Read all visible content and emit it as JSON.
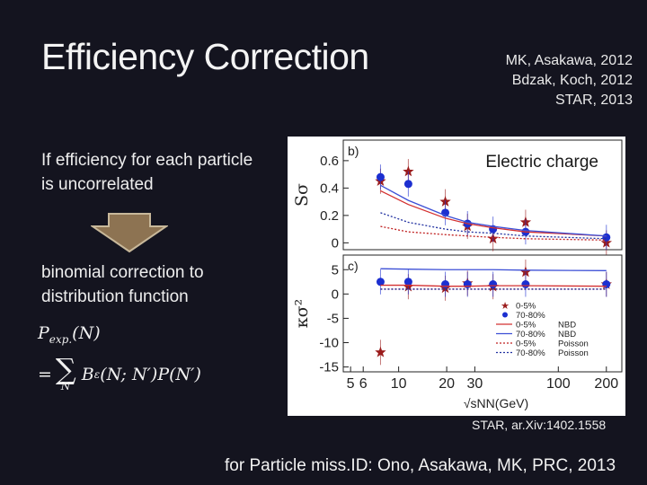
{
  "slide": {
    "title": "Efficiency Correction",
    "refs": [
      "MK, Asakawa, 2012",
      "Bdzak, Koch, 2012",
      "STAR, 2013"
    ],
    "text_top": "If efficiency for each particle is uncorrelated",
    "text_bottom": "binomial correction to distribution function",
    "formula_lhs": "P",
    "formula_lhs_sub": "exp.",
    "formula_lhs_arg": "(N)",
    "formula_eq": "=",
    "formula_sum_sub": "N′",
    "formula_rhs": "B",
    "formula_rhs_sub": "ε",
    "formula_rhs_args": "(N; N′)P(N′)",
    "figure_caption": "STAR, ar.Xiv:1402.1558",
    "footer": "for Particle miss.ID: Ono, Asakawa, MK, PRC, 2013",
    "arrow_color": "#8d7352"
  },
  "chart_data": {
    "type": "scatter",
    "title": "Electric charge",
    "xlabel": "√sNN(GeV)",
    "x_ticks": [
      "5",
      "6",
      "10",
      "20",
      "30",
      "100",
      "200"
    ],
    "x_tick_values": [
      5,
      6,
      10,
      20,
      30,
      100,
      200
    ],
    "xlim": [
      4.5,
      250
    ],
    "xscale": "log",
    "panels": [
      {
        "label": "b)",
        "ylabel": "Sσ",
        "ylim": [
          -0.05,
          0.75
        ],
        "y_ticks": [
          "0.6",
          "0.4",
          "0.2",
          "0"
        ],
        "y_tick_values": [
          0.6,
          0.4,
          0.2,
          0
        ],
        "series": [
          {
            "name": "0-5%",
            "marker": "star",
            "color": "#9b1c1c",
            "x": [
              7.7,
              11.5,
              19.6,
              27,
              39,
              62.4,
              200
            ],
            "y": [
              0.45,
              0.52,
              0.3,
              0.12,
              0.03,
              0.15,
              0.0
            ]
          },
          {
            "name": "70-80%",
            "marker": "circle",
            "color": "#1c2fd0",
            "x": [
              7.7,
              11.5,
              19.6,
              27,
              39,
              62.4,
              200
            ],
            "y": [
              0.48,
              0.43,
              0.22,
              0.14,
              0.1,
              0.08,
              0.04
            ]
          },
          {
            "name": "0-5% NBD",
            "line": "solid",
            "color": "#d43030",
            "x": [
              7.7,
              11.5,
              19.6,
              27,
              39,
              62.4,
              200
            ],
            "y": [
              0.38,
              0.28,
              0.18,
              0.14,
              0.11,
              0.08,
              0.05
            ]
          },
          {
            "name": "70-80% NBD",
            "line": "solid",
            "color": "#3c4fd6",
            "x": [
              7.7,
              11.5,
              19.6,
              27,
              39,
              62.4,
              200
            ],
            "y": [
              0.42,
              0.31,
              0.2,
              0.15,
              0.12,
              0.09,
              0.05
            ]
          },
          {
            "name": "0-5% Poisson",
            "line": "dotted",
            "color": "#c02020",
            "x": [
              7.7,
              11.5,
              19.6,
              27,
              39,
              62.4,
              200
            ],
            "y": [
              0.12,
              0.08,
              0.06,
              0.05,
              0.04,
              0.03,
              0.02
            ]
          },
          {
            "name": "70-80% Poisson",
            "line": "dotted",
            "color": "#2030a0",
            "x": [
              7.7,
              11.5,
              19.6,
              27,
              39,
              62.4,
              200
            ],
            "y": [
              0.22,
              0.15,
              0.1,
              0.08,
              0.07,
              0.05,
              0.03
            ]
          }
        ]
      },
      {
        "label": "c)",
        "ylabel": "κσ²",
        "ylim": [
          -16,
          8
        ],
        "y_ticks": [
          "5",
          "0",
          "-5",
          "-10",
          "-15"
        ],
        "y_tick_values": [
          5,
          0,
          -5,
          -10,
          -15
        ],
        "series": [
          {
            "name": "0-5%",
            "marker": "star",
            "color": "#9b1c1c",
            "x": [
              7.7,
              11.5,
              19.6,
              27,
              39,
              62.4,
              200
            ],
            "y": [
              -12,
              1.5,
              1.2,
              2.2,
              1.5,
              4.5,
              2.0
            ]
          },
          {
            "name": "70-80%",
            "marker": "circle",
            "color": "#1c2fd0",
            "x": [
              7.7,
              11.5,
              19.6,
              27,
              39,
              62.4,
              200
            ],
            "y": [
              2.5,
              2.5,
              2.0,
              2.0,
              2.0,
              2.0,
              2.0
            ]
          },
          {
            "name": "0-5% NBD",
            "line": "solid",
            "color": "#d43030",
            "x": [
              7.7,
              11.5,
              19.6,
              27,
              39,
              62.4,
              200
            ],
            "y": [
              1.8,
              1.8,
              1.6,
              1.6,
              1.7,
              1.7,
              1.6
            ]
          },
          {
            "name": "70-80% NBD",
            "line": "solid",
            "color": "#3c4fd6",
            "x": [
              7.7,
              11.5,
              19.6,
              27,
              39,
              62.4,
              200
            ],
            "y": [
              5.2,
              5.1,
              5.0,
              5.0,
              5.0,
              4.9,
              4.8
            ]
          },
          {
            "name": "0-5% Poisson",
            "line": "dotted",
            "color": "#c02020",
            "x": [
              7.7,
              11.5,
              19.6,
              27,
              39,
              62.4,
              200
            ],
            "y": [
              1.0,
              1.0,
              1.0,
              1.0,
              1.0,
              1.0,
              1.0
            ]
          },
          {
            "name": "70-80% Poisson",
            "line": "dotted",
            "color": "#2030a0",
            "x": [
              7.7,
              11.5,
              19.6,
              27,
              39,
              62.4,
              200
            ],
            "y": [
              1.0,
              1.0,
              1.0,
              1.0,
              1.0,
              1.0,
              1.0
            ]
          }
        ]
      }
    ],
    "legend": [
      {
        "label": "0-5%",
        "kind": "star",
        "color": "#9b1c1c"
      },
      {
        "label": "70-80%",
        "kind": "circle",
        "color": "#1c2fd0"
      },
      {
        "label": "0-5%",
        "kind": "solid",
        "color": "#d43030",
        "tag": "NBD"
      },
      {
        "label": "70-80%",
        "kind": "solid",
        "color": "#3c4fd6",
        "tag": "NBD"
      },
      {
        "label": "0-5%",
        "kind": "dotted",
        "color": "#c02020",
        "tag": "Poisson"
      },
      {
        "label": "70-80%",
        "kind": "dotted",
        "color": "#2030a0",
        "tag": "Poisson"
      }
    ]
  }
}
